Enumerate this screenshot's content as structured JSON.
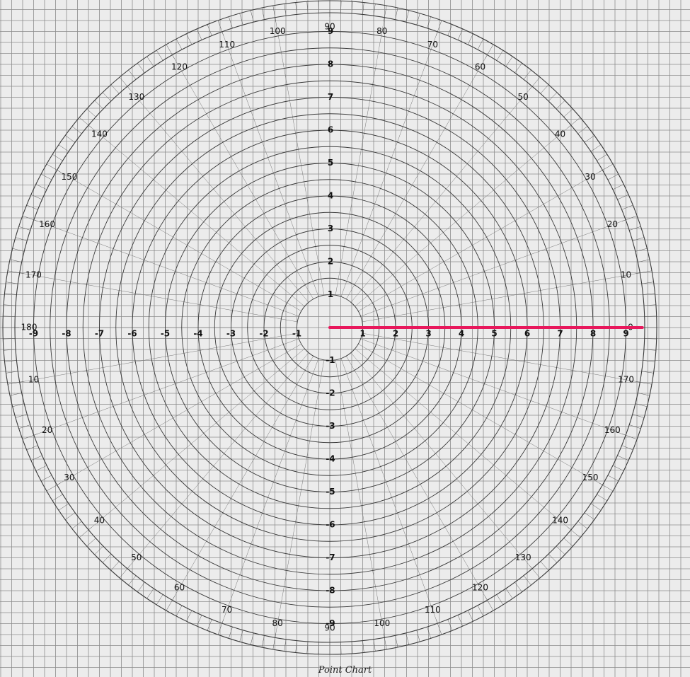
{
  "caption": "Point Chart",
  "highlight_color": "#e8185c",
  "rings": [
    1,
    2,
    3,
    4,
    5,
    6,
    7,
    8,
    9
  ],
  "ring_labels_x": [
    "-9",
    "-8",
    "-7",
    "-6",
    "-5",
    "-4",
    "-3",
    "-2",
    "-1",
    "1",
    "2",
    "3",
    "4",
    "5",
    "6",
    "7",
    "8",
    "9"
  ],
  "ring_labels_y": [
    "9",
    "8",
    "7",
    "6",
    "5",
    "4",
    "3",
    "2",
    "1",
    "-1",
    "-2",
    "-3",
    "-4",
    "-5",
    "-6",
    "-7",
    "-8",
    "-9"
  ],
  "degree_labels_upper": [
    "0",
    "10",
    "20",
    "30",
    "40",
    "50",
    "60",
    "70",
    "80",
    "90",
    "100",
    "110",
    "120",
    "130",
    "140",
    "150",
    "160",
    "170",
    "180"
  ],
  "degree_labels_lower": [
    "10",
    "20",
    "30",
    "40",
    "50",
    "60",
    "70",
    "80",
    "90",
    "100",
    "110",
    "120",
    "130",
    "140",
    "150",
    "160",
    "170"
  ],
  "highlight_line": {
    "from_ring": 0,
    "to_ring": 9.5,
    "bearing": 0
  }
}
